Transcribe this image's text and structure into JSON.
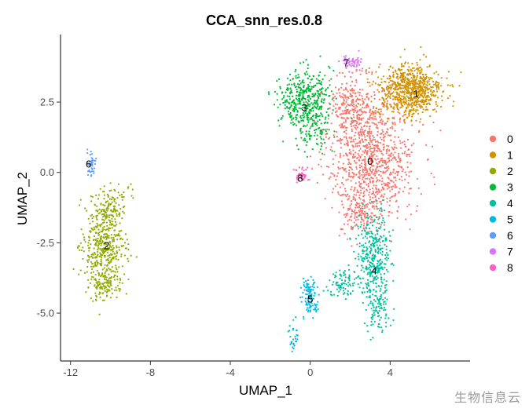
{
  "chart_data": {
    "type": "scatter",
    "title": "CCA_snn_res.0.8",
    "xlabel": "UMAP_1",
    "ylabel": "UMAP_2",
    "xlim": [
      -12.5,
      8
    ],
    "ylim": [
      -6.7,
      4.9
    ],
    "x_ticks": [
      -12,
      -8,
      -4,
      0,
      4
    ],
    "x_tick_labels": [
      "-12",
      "-8",
      "-4",
      "0",
      "4"
    ],
    "y_ticks": [
      2.5,
      0.0,
      -2.5,
      -5.0
    ],
    "y_tick_labels": [
      "2.5",
      "0.0",
      "-2.5",
      "-5.0"
    ],
    "grid": false,
    "legend_position": "right",
    "series": [
      {
        "name": "0",
        "color": "#F8766D",
        "label_x": 3.0,
        "label_y": 0.4,
        "blobs": [
          {
            "cx": 3.1,
            "cy": 0.6,
            "sx": 1.25,
            "sy": 1.35,
            "n": 1000
          },
          {
            "cx": 2.0,
            "cy": 2.4,
            "sx": 0.55,
            "sy": 0.6,
            "n": 200
          },
          {
            "cx": 2.6,
            "cy": -1.4,
            "sx": 0.6,
            "sy": 0.45,
            "n": 130
          }
        ]
      },
      {
        "name": "1",
        "color": "#D39200",
        "label_x": 5.3,
        "label_y": 2.8,
        "blobs": [
          {
            "cx": 5.0,
            "cy": 2.9,
            "sx": 0.95,
            "sy": 0.55,
            "n": 750
          }
        ]
      },
      {
        "name": "2",
        "color": "#93AA00",
        "label_x": -10.2,
        "label_y": -2.6,
        "blobs": [
          {
            "cx": -10.3,
            "cy": -2.7,
            "sx": 0.6,
            "sy": 0.85,
            "n": 450
          },
          {
            "cx": -10.0,
            "cy": -1.2,
            "sx": 0.55,
            "sy": 0.45,
            "n": 120
          },
          {
            "cx": -10.4,
            "cy": -4.0,
            "sx": 0.4,
            "sy": 0.35,
            "n": 80
          }
        ]
      },
      {
        "name": "3",
        "color": "#00BA38",
        "label_x": -0.3,
        "label_y": 2.3,
        "blobs": [
          {
            "cx": -0.3,
            "cy": 2.6,
            "sx": 0.75,
            "sy": 0.6,
            "n": 420
          },
          {
            "cx": 0.2,
            "cy": 1.5,
            "sx": 0.5,
            "sy": 0.4,
            "n": 90
          }
        ]
      },
      {
        "name": "4",
        "color": "#00C19F",
        "label_x": 3.2,
        "label_y": -3.5,
        "blobs": [
          {
            "cx": 3.2,
            "cy": -3.0,
            "sx": 0.5,
            "sy": 0.9,
            "n": 380
          },
          {
            "cx": 3.4,
            "cy": -4.9,
            "sx": 0.35,
            "sy": 0.45,
            "n": 80
          },
          {
            "cx": 1.7,
            "cy": -3.9,
            "sx": 0.45,
            "sy": 0.3,
            "n": 90
          }
        ]
      },
      {
        "name": "5",
        "color": "#00B9E3",
        "label_x": 0.0,
        "label_y": -4.5,
        "blobs": [
          {
            "cx": 0.0,
            "cy": -4.4,
            "sx": 0.25,
            "sy": 0.35,
            "n": 110
          },
          {
            "cx": -0.8,
            "cy": -5.9,
            "sx": 0.2,
            "sy": 0.3,
            "n": 30
          }
        ]
      },
      {
        "name": "6",
        "color": "#619CFF",
        "label_x": -11.1,
        "label_y": 0.3,
        "blobs": [
          {
            "cx": -11.0,
            "cy": 0.3,
            "sx": 0.14,
            "sy": 0.22,
            "n": 45
          }
        ]
      },
      {
        "name": "7",
        "color": "#DB72FB",
        "label_x": 1.8,
        "label_y": 3.9,
        "blobs": [
          {
            "cx": 2.1,
            "cy": 3.9,
            "sx": 0.35,
            "sy": 0.18,
            "n": 55
          }
        ]
      },
      {
        "name": "8",
        "color": "#FF61C3",
        "label_x": -0.5,
        "label_y": -0.2,
        "blobs": [
          {
            "cx": -0.4,
            "cy": -0.1,
            "sx": 0.25,
            "sy": 0.15,
            "n": 40
          }
        ]
      }
    ]
  },
  "watermark": "生物信息云"
}
